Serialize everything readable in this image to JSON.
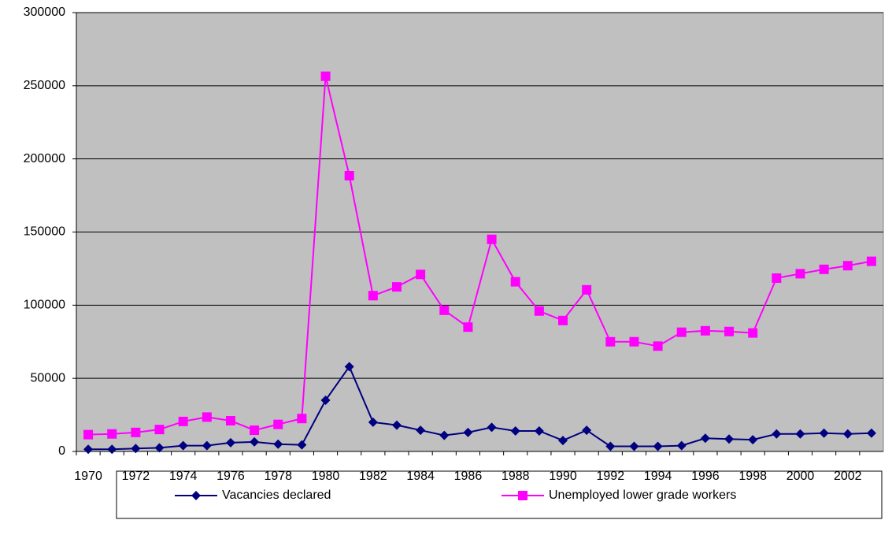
{
  "chart_data": {
    "type": "line",
    "categories": [
      "1970",
      null,
      "1972",
      null,
      "1974",
      null,
      "1976",
      null,
      "1978",
      null,
      "1980",
      null,
      "1982",
      null,
      "1984",
      null,
      "1986",
      null,
      "1988",
      null,
      "1990",
      null,
      "1992",
      null,
      "1994",
      null,
      "1996",
      null,
      "1998",
      null,
      "2000",
      null,
      "2002",
      null
    ],
    "series": [
      {
        "name": "Vacancies declared",
        "color": "#000080",
        "marker": "diamond",
        "values": [
          1500,
          1500,
          2000,
          2500,
          4000,
          4000,
          6000,
          6500,
          5000,
          4500,
          35000,
          58000,
          20000,
          18000,
          14500,
          11000,
          13000,
          16500,
          14000,
          14000,
          7500,
          14500,
          3500,
          3500,
          3500,
          4000,
          9000,
          8500,
          8000,
          12000,
          12000,
          12500,
          12000,
          12500
        ]
      },
      {
        "name": "Unemployed lower grade workers",
        "color": "#ff00ff",
        "marker": "square",
        "values": [
          11500,
          12000,
          13000,
          15000,
          20500,
          23500,
          21000,
          14500,
          18500,
          22500,
          256500,
          188500,
          106500,
          112500,
          121000,
          96500,
          85000,
          145000,
          116000,
          96000,
          89500,
          110500,
          75000,
          75000,
          72000,
          81500,
          82500,
          82000,
          81000,
          118500,
          121500,
          124500,
          127000,
          130000
        ]
      }
    ],
    "ylim": [
      0,
      300000
    ],
    "yticks": [
      0,
      50000,
      100000,
      150000,
      200000,
      250000,
      300000
    ],
    "grid": true,
    "plot_background": "#c0c0c0",
    "legend": "bottom"
  }
}
